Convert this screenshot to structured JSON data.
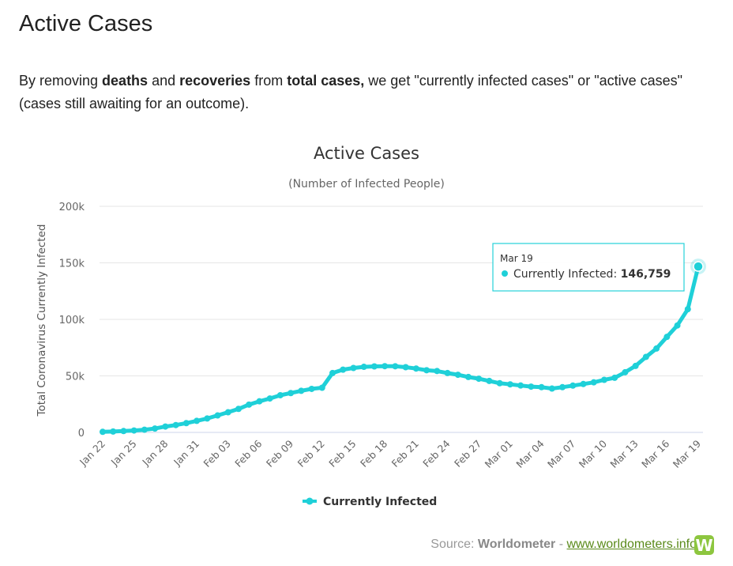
{
  "heading": "Active Cases",
  "intro": {
    "t1": "By removing ",
    "b1": "deaths",
    "t2": " and ",
    "b2": "recoveries",
    "t3": " from ",
    "b3": "total cases,",
    "t4": " we get \"currently infected cases\" or \"active cases\" (cases still awaiting for an outcome)."
  },
  "tooltip": {
    "date": "Mar 19",
    "label": "Currently Infected: ",
    "value": "146,759"
  },
  "source": {
    "prefix": "Source: ",
    "name": "Worldometer",
    "sep": " - ",
    "link": "www.worldometers.info",
    "logo_letter": "W"
  },
  "colors": {
    "series": "#1fd0d8",
    "grid": "#e6e6e6",
    "axis_text": "#666666"
  },
  "chart_data": {
    "type": "line",
    "title": "Active Cases",
    "subtitle": "(Number of Infected People)",
    "ylabel": "Total Coronavirus Currently Infected",
    "ylim": [
      0,
      200000
    ],
    "yticks": [
      0,
      50000,
      100000,
      150000,
      200000
    ],
    "ytick_labels": [
      "0",
      "50k",
      "100k",
      "150k",
      "200k"
    ],
    "x_tick_labels": [
      "Jan 22",
      "Jan 25",
      "Jan 28",
      "Jan 31",
      "Feb 03",
      "Feb 06",
      "Feb 09",
      "Feb 12",
      "Feb 15",
      "Feb 18",
      "Feb 21",
      "Feb 24",
      "Feb 27",
      "Mar 01",
      "Mar 04",
      "Mar 07",
      "Mar 10",
      "Mar 13",
      "Mar 16",
      "Mar 19"
    ],
    "legend_position": "bottom-center",
    "grid": true,
    "series": [
      {
        "name": "Currently Infected",
        "x": [
          "Jan 22",
          "Jan 23",
          "Jan 24",
          "Jan 25",
          "Jan 26",
          "Jan 27",
          "Jan 28",
          "Jan 29",
          "Jan 30",
          "Jan 31",
          "Feb 01",
          "Feb 02",
          "Feb 03",
          "Feb 04",
          "Feb 05",
          "Feb 06",
          "Feb 07",
          "Feb 08",
          "Feb 09",
          "Feb 10",
          "Feb 11",
          "Feb 12",
          "Feb 13",
          "Feb 14",
          "Feb 15",
          "Feb 16",
          "Feb 17",
          "Feb 18",
          "Feb 19",
          "Feb 20",
          "Feb 21",
          "Feb 22",
          "Feb 23",
          "Feb 24",
          "Feb 25",
          "Feb 26",
          "Feb 27",
          "Feb 28",
          "Feb 29",
          "Mar 01",
          "Mar 02",
          "Mar 03",
          "Mar 04",
          "Mar 05",
          "Mar 06",
          "Mar 07",
          "Mar 08",
          "Mar 09",
          "Mar 10",
          "Mar 11",
          "Mar 12",
          "Mar 13",
          "Mar 14",
          "Mar 15",
          "Mar 16",
          "Mar 17",
          "Mar 18",
          "Mar 19"
        ],
        "values": [
          510,
          780,
          1200,
          1700,
          2400,
          3400,
          5200,
          6500,
          8200,
          10200,
          12300,
          15000,
          17800,
          20800,
          24600,
          27500,
          30000,
          32900,
          34800,
          36800,
          38500,
          39500,
          52500,
          55500,
          57000,
          58000,
          58400,
          58600,
          58500,
          57700,
          56500,
          55000,
          54300,
          52500,
          51000,
          49000,
          47500,
          45500,
          43500,
          42500,
          41500,
          40500,
          40000,
          38800,
          40000,
          41400,
          42800,
          44300,
          46500,
          48300,
          53200,
          58800,
          66800,
          74200,
          84500,
          94600,
          109000,
          146759
        ]
      }
    ],
    "highlight": {
      "x": "Mar 19",
      "y": 146759
    }
  }
}
